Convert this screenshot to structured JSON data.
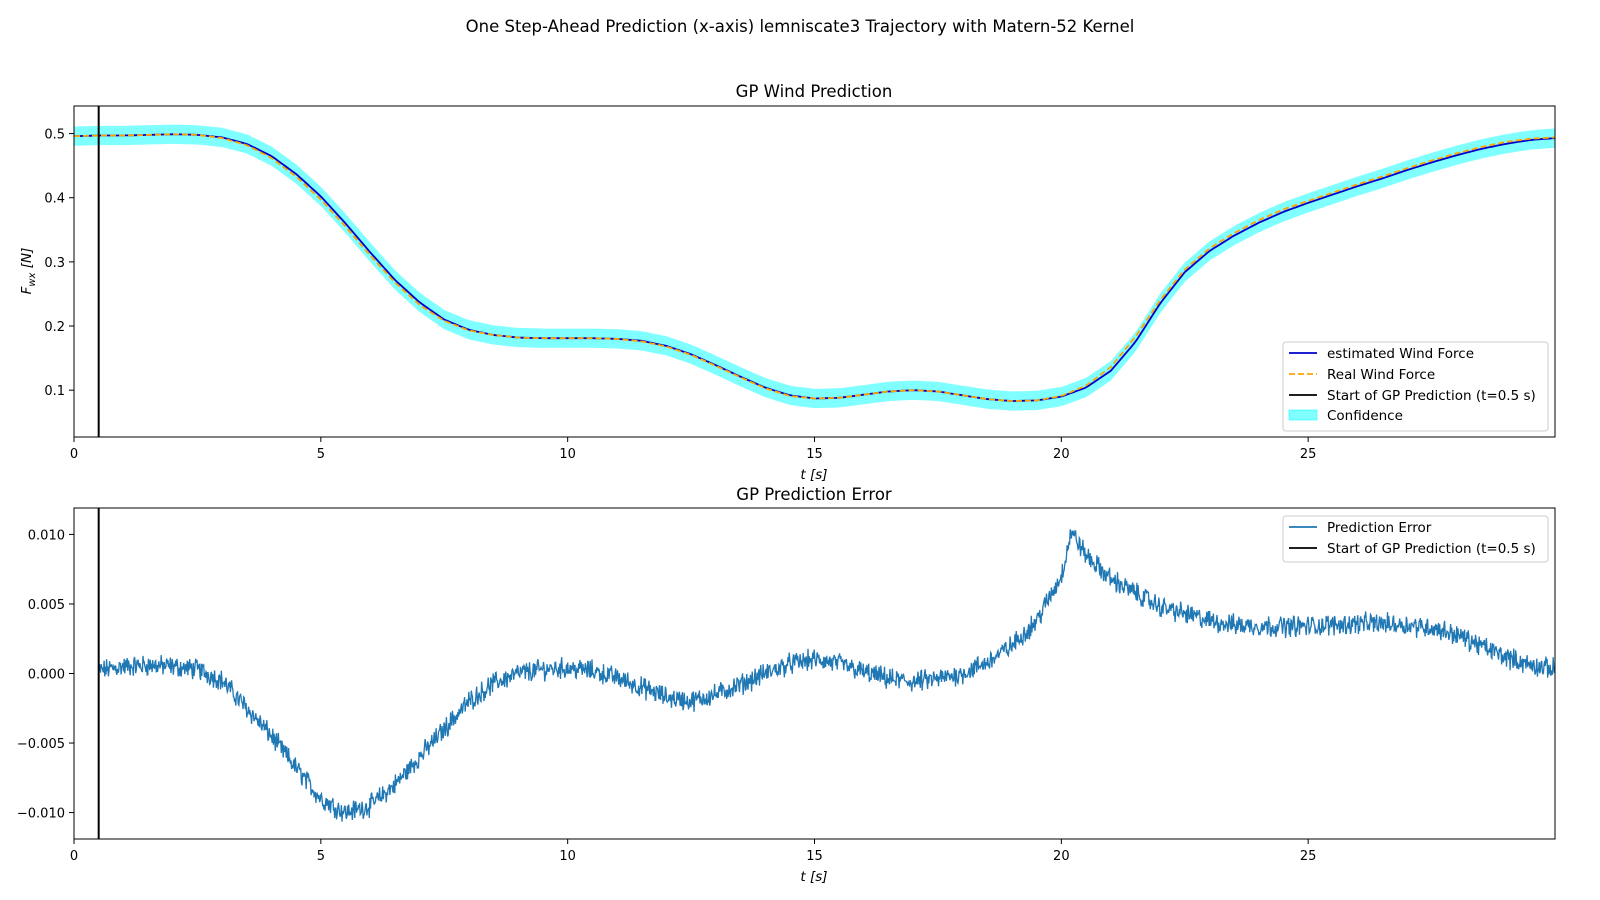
{
  "figure": {
    "suptitle": "One Step-Ahead Prediction (x-axis) lemniscate3 Trajectory with Matern-52 Kernel"
  },
  "colors": {
    "estimated": "#0000cd",
    "real": "#ffa500",
    "start": "#000000",
    "confidence": "#00ffff",
    "error": "#1f77b4"
  },
  "chart_data": [
    {
      "type": "line",
      "title": "GP Wind Prediction",
      "xlabel": "t [s]",
      "ylabel": "F_wx [N]",
      "ylabel_main": "F",
      "ylabel_sub": "wx",
      "ylabel_unit": "[N]",
      "xlim": [
        0,
        30
      ],
      "ylim": [
        0.027,
        0.543
      ],
      "xticks": [
        0,
        5,
        10,
        15,
        20,
        25
      ],
      "xtick_labels": [
        "0",
        "5",
        "10",
        "15",
        "20",
        "25"
      ],
      "yticks": [
        0.1,
        0.2,
        0.3,
        0.4,
        0.5
      ],
      "ytick_labels": [
        "0.1",
        "0.2",
        "0.3",
        "0.4",
        "0.5"
      ],
      "grid": false,
      "legend_position": "lower-right",
      "legend": [
        "estimated Wind Force",
        "Real Wind Force",
        "Start of GP Prediction (t=0.5 s)",
        "Confidence"
      ],
      "start_line_x": 0.5,
      "confidence_halfwidth": 0.015,
      "series": [
        {
          "name": "estimated Wind Force",
          "style": "solid",
          "x": [
            0,
            0.5,
            1,
            1.5,
            2,
            2.5,
            3,
            3.5,
            4,
            4.5,
            5,
            5.5,
            6,
            6.5,
            7,
            7.5,
            8,
            8.5,
            9,
            9.5,
            10,
            10.5,
            11,
            11.5,
            12,
            12.5,
            13,
            13.5,
            14,
            14.5,
            15,
            15.5,
            16,
            16.5,
            17,
            17.5,
            18,
            18.5,
            19,
            19.5,
            20,
            20.5,
            21,
            21.5,
            22,
            22.5,
            23,
            23.5,
            24,
            24.5,
            25,
            25.5,
            26,
            26.5,
            27,
            27.5,
            28,
            28.5,
            29,
            29.5,
            30
          ],
          "y": [
            0.496,
            0.497,
            0.497,
            0.498,
            0.499,
            0.498,
            0.494,
            0.484,
            0.465,
            0.437,
            0.402,
            0.36,
            0.315,
            0.272,
            0.237,
            0.21,
            0.194,
            0.186,
            0.182,
            0.181,
            0.181,
            0.181,
            0.18,
            0.177,
            0.169,
            0.156,
            0.139,
            0.121,
            0.104,
            0.092,
            0.087,
            0.088,
            0.093,
            0.098,
            0.1,
            0.098,
            0.092,
            0.086,
            0.083,
            0.084,
            0.09,
            0.104,
            0.13,
            0.175,
            0.235,
            0.284,
            0.317,
            0.341,
            0.361,
            0.378,
            0.392,
            0.405,
            0.418,
            0.43,
            0.443,
            0.455,
            0.466,
            0.476,
            0.484,
            0.49,
            0.493
          ]
        },
        {
          "name": "Real Wind Force",
          "style": "dashed",
          "x": [
            0,
            0.5,
            1,
            1.5,
            2,
            2.5,
            3,
            3.5,
            4,
            4.5,
            5,
            5.5,
            6,
            6.5,
            7,
            7.5,
            8,
            8.5,
            9,
            9.5,
            10,
            10.5,
            11,
            11.5,
            12,
            12.5,
            13,
            13.5,
            14,
            14.5,
            15,
            15.5,
            16,
            16.5,
            17,
            17.5,
            18,
            18.5,
            19,
            19.5,
            20,
            20.5,
            21,
            21.5,
            22,
            22.5,
            23,
            23.5,
            24,
            24.5,
            25,
            25.5,
            26,
            26.5,
            27,
            27.5,
            28,
            28.5,
            29,
            29.5,
            30
          ],
          "y": [
            0.496,
            0.497,
            0.497,
            0.498,
            0.499,
            0.498,
            0.493,
            0.482,
            0.462,
            0.433,
            0.397,
            0.355,
            0.31,
            0.268,
            0.233,
            0.208,
            0.193,
            0.186,
            0.182,
            0.181,
            0.181,
            0.181,
            0.18,
            0.176,
            0.168,
            0.155,
            0.138,
            0.12,
            0.103,
            0.091,
            0.087,
            0.088,
            0.093,
            0.098,
            0.1,
            0.098,
            0.092,
            0.086,
            0.083,
            0.084,
            0.091,
            0.107,
            0.136,
            0.183,
            0.24,
            0.288,
            0.321,
            0.345,
            0.365,
            0.382,
            0.395,
            0.408,
            0.421,
            0.433,
            0.446,
            0.458,
            0.469,
            0.479,
            0.487,
            0.492,
            0.494
          ]
        }
      ]
    },
    {
      "type": "line",
      "title": "GP Prediction Error",
      "xlabel": "t [s]",
      "ylabel": "",
      "xlim": [
        0,
        30
      ],
      "ylim": [
        -0.0119,
        0.0119
      ],
      "xticks": [
        0,
        5,
        10,
        15,
        20,
        25
      ],
      "xtick_labels": [
        "0",
        "5",
        "10",
        "15",
        "20",
        "25"
      ],
      "yticks": [
        -0.01,
        -0.005,
        0,
        0.005,
        0.01
      ],
      "ytick_labels": [
        "−0.010",
        "−0.005",
        "0.000",
        "0.005",
        "0.010"
      ],
      "grid": false,
      "legend_position": "upper-right",
      "legend": [
        "Prediction Error",
        "Start of GP Prediction (t=0.5 s)"
      ],
      "start_line_x": 0.5,
      "noise_amplitude": 0.0006,
      "series": [
        {
          "name": "Prediction Error",
          "x": [
            0.5,
            1,
            1.5,
            2,
            2.5,
            3,
            3.5,
            4,
            4.5,
            5,
            5.5,
            6,
            6.5,
            7,
            7.5,
            8,
            8.5,
            9,
            9.5,
            10,
            10.5,
            11,
            11.5,
            12,
            12.5,
            13,
            13.5,
            14,
            14.5,
            15,
            15.5,
            16,
            16.5,
            17,
            17.5,
            18,
            18.5,
            19,
            19.5,
            20,
            20.2,
            20.5,
            21,
            21.5,
            22,
            22.5,
            23,
            23.5,
            24,
            24.5,
            25,
            25.5,
            26,
            26.5,
            27,
            27.5,
            28,
            28.5,
            29,
            29.5,
            30
          ],
          "y": [
            0.0002,
            0.0005,
            0.0006,
            0.0005,
            0.0003,
            -0.0005,
            -0.0025,
            -0.0045,
            -0.0068,
            -0.009,
            -0.01,
            -0.0095,
            -0.008,
            -0.006,
            -0.004,
            -0.002,
            -0.0007,
            0.0,
            0.0003,
            0.0004,
            0.0002,
            -0.0003,
            -0.001,
            -0.0017,
            -0.002,
            -0.0015,
            -0.0008,
            0.0,
            0.0007,
            0.001,
            0.0007,
            0.0001,
            -0.0004,
            -0.0006,
            -0.0004,
            0.0,
            0.0008,
            0.002,
            0.0038,
            0.007,
            0.0102,
            0.0085,
            0.0068,
            0.0058,
            0.0048,
            0.0043,
            0.0038,
            0.0035,
            0.0034,
            0.0034,
            0.0034,
            0.0035,
            0.0036,
            0.0036,
            0.0035,
            0.0033,
            0.0028,
            0.002,
            0.0012,
            0.0006,
            0.0003
          ]
        }
      ]
    }
  ]
}
